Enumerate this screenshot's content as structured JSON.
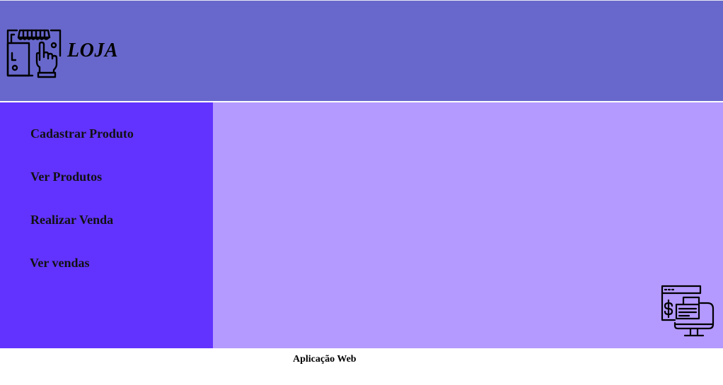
{
  "colors": {
    "header_bg": "#6868cc",
    "sidebar_bg": "#6233ff",
    "main_bg": "#b499ff",
    "icon_stroke": "#000000"
  },
  "header": {
    "logo_icon": "store-touch-icon",
    "title": "LOJA"
  },
  "sidebar": {
    "items": [
      {
        "label": "Cadastrar Produto"
      },
      {
        "label": "Ver Produtos"
      },
      {
        "label": "Realizar Venda"
      },
      {
        "label": "Ver vendas"
      }
    ]
  },
  "main": {
    "corner_icon": "point-of-sale-monitor-icon"
  },
  "footer": {
    "text": "Aplicação Web"
  }
}
